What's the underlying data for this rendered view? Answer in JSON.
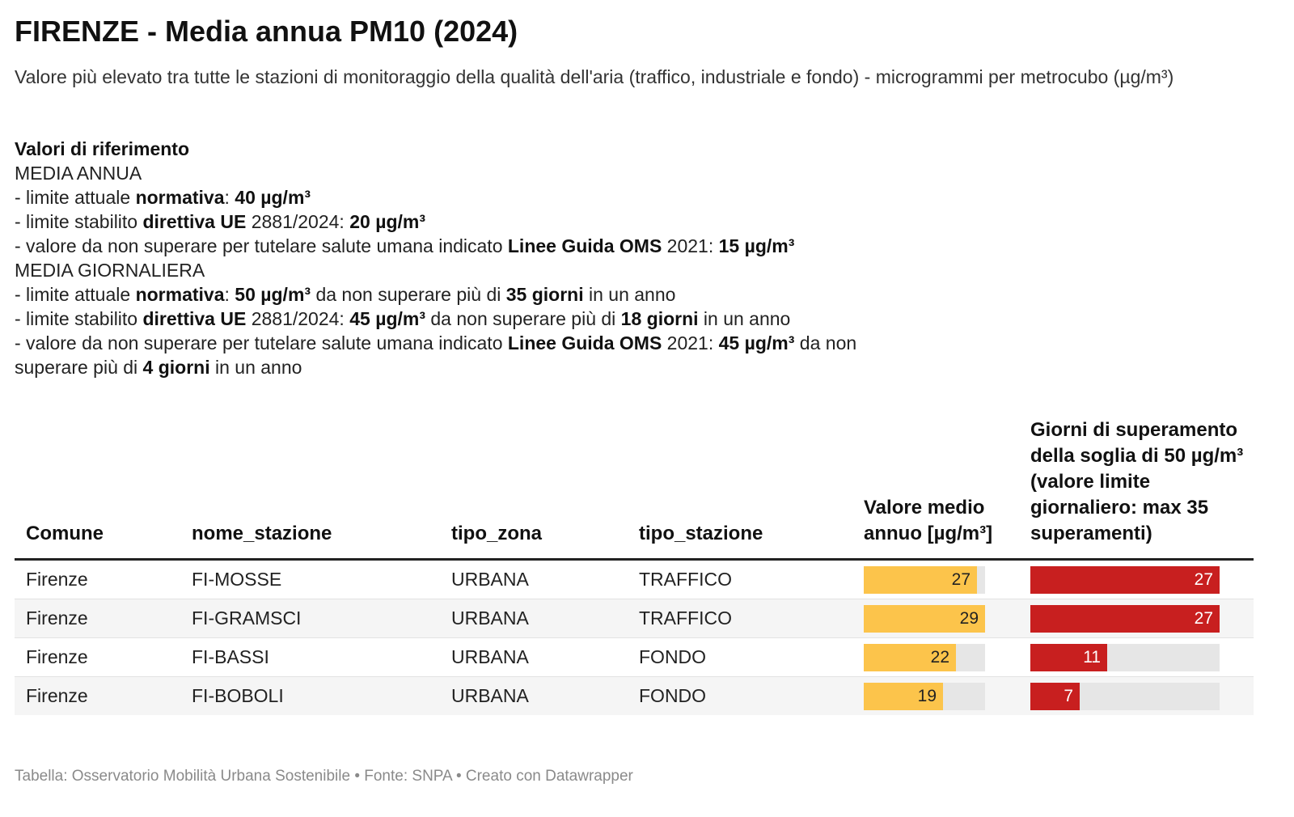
{
  "title": "FIRENZE - Media annua PM10 (2024)",
  "subtitle": "Valore più elevato tra tutte le stazioni di monitoraggio della qualità dell'aria (traffico, industriale e fondo) - microgrammi per metrocubo (µg/m³)",
  "notes": {
    "heading": "Valori di riferimento",
    "annual_heading": "MEDIA ANNUA",
    "annual": [
      [
        "- limite attuale ",
        "normativa",
        ": ",
        "40 µg/m³"
      ],
      [
        "- limite stabilito ",
        "direttiva UE",
        " 2881/2024: ",
        "20 µg/m³"
      ],
      [
        "- valore da non superare per tutelare salute umana indicato ",
        "Linee Guida OMS",
        " 2021: ",
        "15 µg/m³"
      ]
    ],
    "daily_heading": "MEDIA GIORNALIERA",
    "daily": [
      [
        "- limite attuale ",
        "normativa",
        ": ",
        "50 µg/m³",
        " da non superare più di ",
        "35 giorni",
        " in un anno"
      ],
      [
        "- limite stabilito ",
        "direttiva UE",
        " 2881/2024: ",
        "45 µg/m³",
        " da non superare più di ",
        "18 giorni",
        " in un anno"
      ],
      [
        "- valore da non superare per tutelare salute umana indicato ",
        "Linee Guida OMS",
        " 2021: ",
        "45 µg/m³",
        " da non superare più di ",
        "4 giorni",
        " in un anno"
      ]
    ]
  },
  "table": {
    "headers": [
      "Comune",
      "nome_stazione",
      "tipo_zona",
      "tipo_stazione",
      "Valore medio annuo [µg/m³]",
      "Giorni di superamento della soglia di 50 µg/m³ (valore limite giornaliero: max 35 superamenti)"
    ],
    "rows": [
      {
        "comune": "Firenze",
        "stazione": "FI-MOSSE",
        "zona": "URBANA",
        "tipo": "TRAFFICO",
        "valore": 27,
        "giorni": 27
      },
      {
        "comune": "Firenze",
        "stazione": "FI-GRAMSCI",
        "zona": "URBANA",
        "tipo": "TRAFFICO",
        "valore": 29,
        "giorni": 27
      },
      {
        "comune": "Firenze",
        "stazione": "FI-BASSI",
        "zona": "URBANA",
        "tipo": "FONDO",
        "valore": 22,
        "giorni": 11
      },
      {
        "comune": "Firenze",
        "stazione": "FI-BOBOLI",
        "zona": "URBANA",
        "tipo": "FONDO",
        "valore": 19,
        "giorni": 7
      }
    ]
  },
  "chart_data": {
    "type": "table",
    "title": "FIRENZE - Media annua PM10 (2024)",
    "columns": [
      "Comune",
      "nome_stazione",
      "tipo_zona",
      "tipo_stazione",
      "Valore medio annuo [µg/m³]",
      "Giorni di superamento della soglia di 50 µg/m³ (valore limite giornaliero: max 35 superamenti)"
    ],
    "categories": [
      "FI-MOSSE",
      "FI-GRAMSCI",
      "FI-BASSI",
      "FI-BOBOLI"
    ],
    "series": [
      {
        "name": "Valore medio annuo [µg/m³]",
        "values": [
          27,
          29,
          22,
          19
        ],
        "scale_max": 29
      },
      {
        "name": "Giorni di superamento della soglia di 50 µg/m³ (valore limite giornaliero: max 35 superamenti)",
        "values": [
          27,
          27,
          11,
          7
        ],
        "scale_max": 27
      }
    ]
  },
  "colors": {
    "valore_bar": "#fcc44b",
    "giorni_bar": "#c81f1f",
    "bar_track": "#e6e6e6"
  },
  "footer": "Tabella: Osservatorio Mobilità Urbana Sostenibile • Fonte: SNPA • Creato con Datawrapper"
}
